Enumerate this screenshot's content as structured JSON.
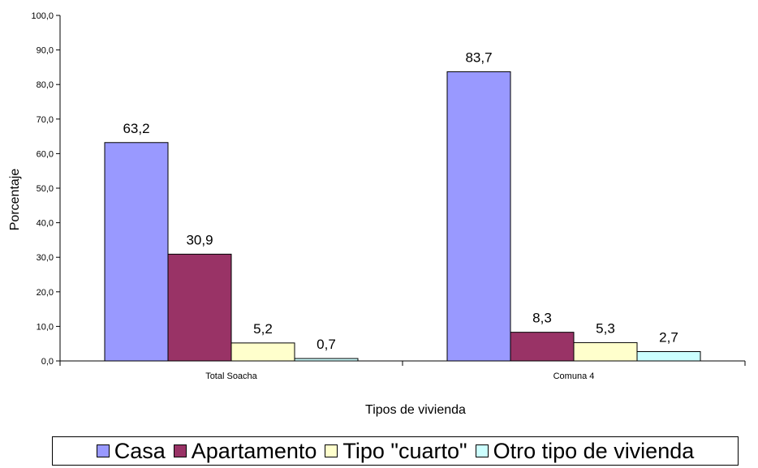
{
  "chart_data": {
    "type": "bar",
    "categories": [
      "Total Soacha",
      "Comuna 4"
    ],
    "series": [
      {
        "name": "Casa",
        "values": [
          63.2,
          83.7
        ],
        "color": "#9999ff"
      },
      {
        "name": "Apartamento",
        "values": [
          30.9,
          8.3
        ],
        "color": "#993366"
      },
      {
        "name": "Tipo \"cuarto\"",
        "values": [
          5.2,
          5.3
        ],
        "color": "#ffffcc"
      },
      {
        "name": "Otro tipo de vivienda",
        "values": [
          0.7,
          2.7
        ],
        "color": "#ccffff"
      }
    ],
    "data_labels": [
      [
        "63,2",
        "83,7"
      ],
      [
        "30,9",
        "8,3"
      ],
      [
        "5,2",
        "5,3"
      ],
      [
        "0,7",
        "2,7"
      ]
    ],
    "xlabel": "Tipos de vivienda",
    "ylabel": "Porcentaje",
    "ylim": [
      0,
      100
    ],
    "yticks": [
      "0,0",
      "10,0",
      "20,0",
      "30,0",
      "40,0",
      "50,0",
      "60,0",
      "70,0",
      "80,0",
      "90,0",
      "100,0"
    ],
    "grid": false,
    "legend_position": "bottom"
  }
}
